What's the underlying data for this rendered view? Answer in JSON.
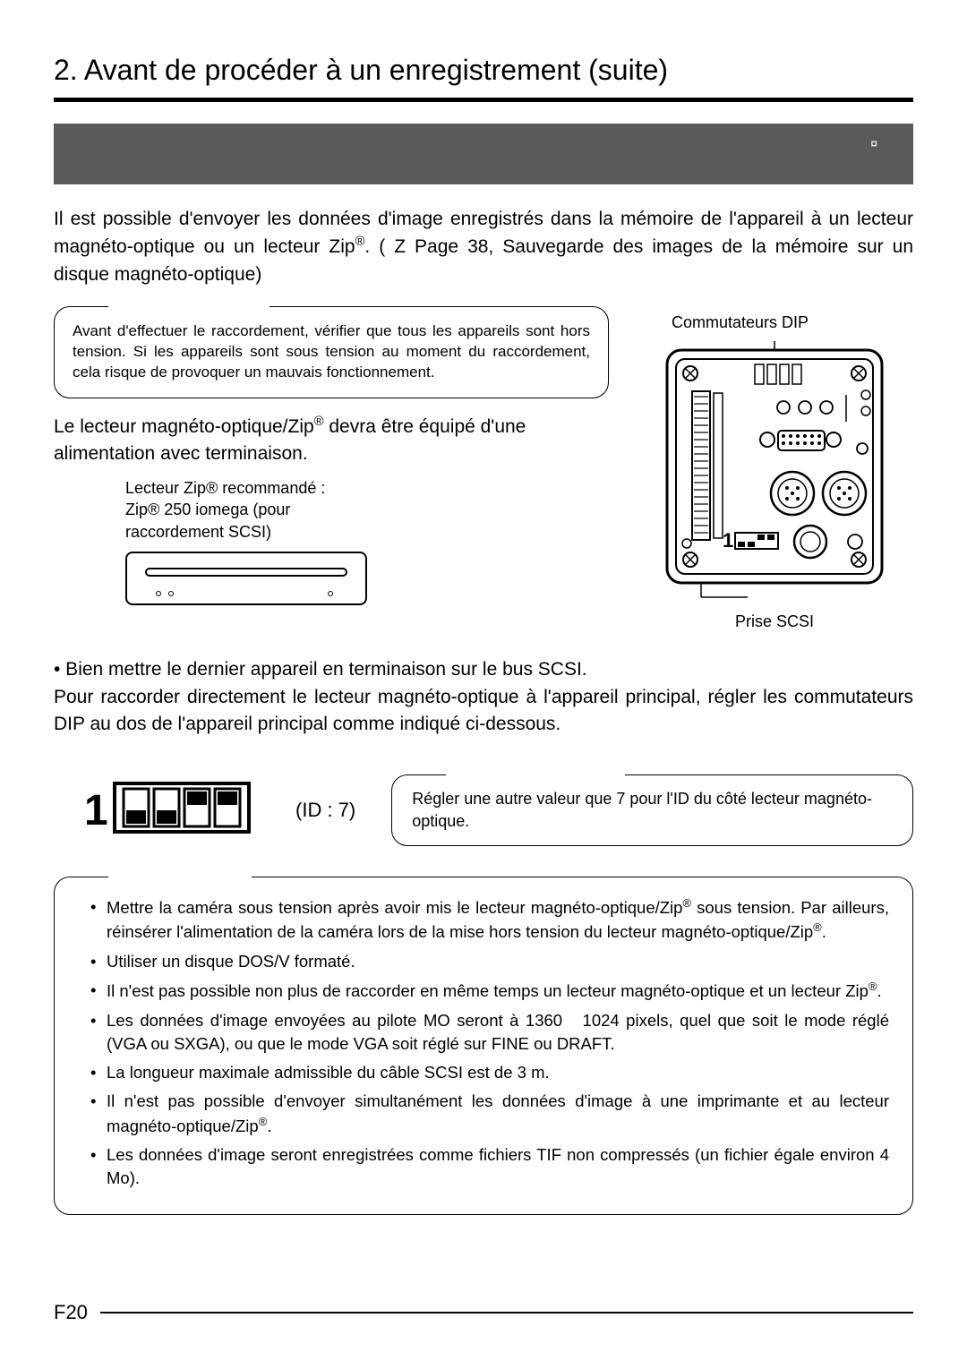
{
  "title": "2. Avant de procéder à un enregistrement (suite)",
  "banner_symbol": "¤",
  "intro_html": "Il est possible d'envoyer les données d'image enregistrés dans la mémoire de l'appareil à un lecteur magnéto-optique ou un lecteur Zip<sup>®</sup>. (&nbsp;Z Page 38, Sauvegarde des images de la mémoire sur un disque magnéto-optique)",
  "caution_box": "Avant d'effectuer le raccordement, vérifier que tous les appareils sont hors tension. Si les appareils sont sous tension au moment du raccordement, cela risque de provoquer un mauvais fonctionnement.",
  "sub1_html": "Le lecteur magnéto-optique/Zip<sup>®</sup> devra être équipé d'une alimentation avec terminaison.",
  "zip_lines": [
    "Lecteur Zip® recommandé :",
    "Zip® 250 iomega (pour",
    "raccordement SCSI)"
  ],
  "label_dip": "Commutateurs DIP",
  "label_scsi": "Prise SCSI",
  "bullet1": "•  Bien mettre le dernier appareil en terminaison sur le bus SCSI.",
  "para2": "Pour raccorder directement le lecteur magnéto-optique à l'appareil principal, régler les commutateurs DIP au dos de l'appareil principal comme indiqué ci-dessous.",
  "id_label": "(ID : 7)",
  "memo_text": "Régler une autre valeur que 7 pour l'ID du côté lecteur magnéto-optique.",
  "attention_items": [
    "Mettre la caméra sous tension après avoir mis le lecteur magnéto-optique/Zip<sup>®</sup> sous tension. Par ailleurs, réinsérer l'alimentation de la caméra lors de la mise hors tension du lecteur magnéto-optique/Zip<sup>®</sup>.",
    "Utiliser un disque DOS/V formaté.",
    "Il n'est pas possible non plus de raccorder en même temps un lecteur magnéto-optique et un lecteur Zip<sup>®</sup>.",
    "Les données d'image envoyées au pilote MO seront à 1360 &nbsp; 1024 pixels, quel que soit le mode réglé (VGA ou SXGA), ou que le mode VGA soit réglé sur FINE ou DRAFT.",
    "La longueur maximale admissible du câble SCSI est de 3 m.",
    "Il n'est pas possible d'envoyer simultanément les données d'image à une imprimante et au lecteur magnéto-optique/Zip<sup>®</sup>.",
    "Les données d'image seront enregistrées comme fichiers TIF non compressés (un fichier égale environ 4 Mo)."
  ],
  "page_number": "F20",
  "dip_switch": {
    "positions": [
      "down",
      "down",
      "up",
      "up"
    ]
  },
  "colors": {
    "text": "#000000",
    "banner_bg": "#5a5a5a",
    "rule": "#000000"
  }
}
